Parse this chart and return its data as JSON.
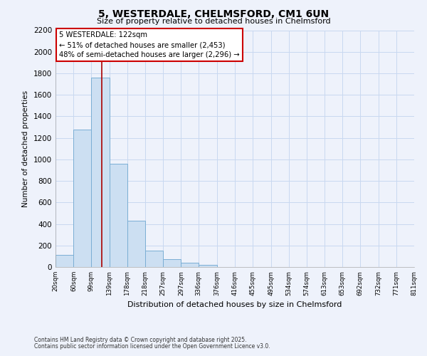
{
  "title": "5, WESTERDALE, CHELMSFORD, CM1 6UN",
  "subtitle": "Size of property relative to detached houses in Chelmsford",
  "xlabel": "Distribution of detached houses by size in Chelmsford",
  "ylabel": "Number of detached properties",
  "bar_color": "#ccdff2",
  "bar_edge_color": "#7aaed4",
  "grid_color": "#c8d8f0",
  "background_color": "#eef2fb",
  "vline_x": 122,
  "vline_color": "#aa0000",
  "annotation_title": "5 WESTERDALE: 122sqm",
  "annotation_line1": "← 51% of detached houses are smaller (2,453)",
  "annotation_line2": "48% of semi-detached houses are larger (2,296) →",
  "annotation_box_facecolor": "#ffffff",
  "annotation_box_edgecolor": "#cc0000",
  "bin_edges": [
    20,
    60,
    99,
    139,
    178,
    218,
    257,
    297,
    336,
    376,
    416,
    455,
    495,
    534,
    574,
    613,
    653,
    692,
    732,
    771,
    811
  ],
  "bar_heights": [
    115,
    1280,
    1760,
    960,
    430,
    150,
    75,
    40,
    20,
    0,
    0,
    0,
    0,
    0,
    0,
    0,
    0,
    0,
    0,
    0
  ],
  "ylim": [
    0,
    2200
  ],
  "yticks": [
    0,
    200,
    400,
    600,
    800,
    1000,
    1200,
    1400,
    1600,
    1800,
    2000,
    2200
  ],
  "footer_line1": "Contains HM Land Registry data © Crown copyright and database right 2025.",
  "footer_line2": "Contains public sector information licensed under the Open Government Licence v3.0.",
  "tick_labels": [
    "20sqm",
    "60sqm",
    "99sqm",
    "139sqm",
    "178sqm",
    "218sqm",
    "257sqm",
    "297sqm",
    "336sqm",
    "376sqm",
    "416sqm",
    "455sqm",
    "495sqm",
    "534sqm",
    "574sqm",
    "613sqm",
    "653sqm",
    "692sqm",
    "732sqm",
    "771sqm",
    "811sqm"
  ]
}
